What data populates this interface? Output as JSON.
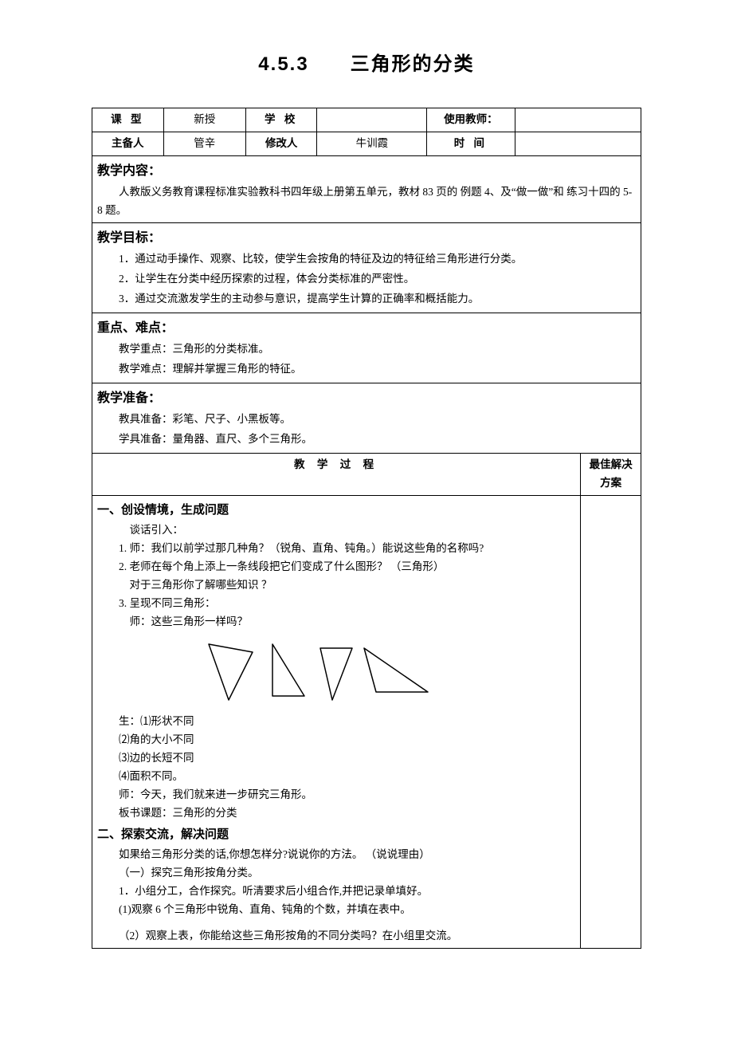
{
  "title": "4.5.3　　三角形的分类",
  "meta": {
    "row1": {
      "c1_label": "课  型",
      "c1_val": "新授",
      "c2_label": "学  校",
      "c2_val": "",
      "c3_label": "使用教师：",
      "c3_val": ""
    },
    "row2": {
      "c1_label": "主备人",
      "c1_val": "管辛",
      "c2_label": "修改人",
      "c2_val": "牛训霞",
      "c3_label": "时  间",
      "c3_val": ""
    }
  },
  "content_h": "教学内容：",
  "content_p": "人教版义务教育课程标准实验教科书四年级上册第五单元，教材 83 页的  例题 4、及“做一做”和  练习十四的 5-8 题。",
  "goal_h": "教学目标：",
  "goal_1": "1．通过动手操作、观察、比较，使学生会按角的特征及边的特征给三角形进行分类。",
  "goal_2": "2．让学生在分类中经历探索的过程，体会分类标准的严密性。",
  "goal_3": "3．通过交流激发学生的主动参与意识，提高学生计算的正确率和概括能力。",
  "keypoint_h": "重点、难点：",
  "keypoint_1": "教学重点：三角形的分类标准。",
  "keypoint_2": "教学难点：理解并掌握三角形的特征。",
  "prep_h": "教学准备：",
  "prep_1": "教具准备：彩笔、尺子、小黑板等。",
  "prep_2": "学具准备：量角器、直尺、多个三角形。",
  "proc_h": "教 学 过 程",
  "proc_right_h": "最佳解决方案",
  "s1_h": "一、创设情境，生成问题",
  "s1_intro": "谈话引入：",
  "s1_1": "1.  师：我们以前学过那几种角？（锐角、直角、钝角。）能说这些角的名称吗?",
  "s1_2": "2.  老师在每个角上添上一条线段把它们变成了什么图形？ （三角形）",
  "s1_2b": "对于三角形你了解哪些知识  ？",
  "s1_3": "3.  呈现不同三角形：",
  "s1_3b": "师：这些三角形一样吗？",
  "s1_ans_lead": "生：⑴形状不同",
  "s1_ans2": "⑵角的大小不同",
  "s1_ans3": "⑶边的长短不同",
  "s1_ans4": "⑷面积不同。",
  "s1_end1": "师：今天，我们就来进一步研究三角形。",
  "s1_end2": "板书课题：三角形的分类",
  "s2_h": "二、探索交流，解决问题",
  "s2_1": "如果给三角形分类的话,你想怎样分?说说你的方法。 （说说理由）",
  "s2_2": "（一）探究三角形按角分类。",
  "s2_3": "1．小组分工，合作探究。听清要求后小组合作,并把记录单填好。",
  "s2_4": "(1)观察 6 个三角形中锐角、直角、钝角的个数，并填在表中。",
  "s2_5": "（2）观察上表，你能给这些三角形按角的不同分类吗？在小组里交流。",
  "triangles_svg": {
    "stroke": "#000000",
    "stroke_width": 1.5,
    "fill": "none",
    "viewbox_w": 300,
    "viewbox_h": 90,
    "shapes": [
      "M 20 10 L 75 20 L 45 80 Z",
      "M 100 10 L 100 75 L 140 75 Z",
      "M 160 15 L 200 15 L 175 80 Z",
      "M 215 15 L 295 70 L 230 70 Z"
    ]
  }
}
